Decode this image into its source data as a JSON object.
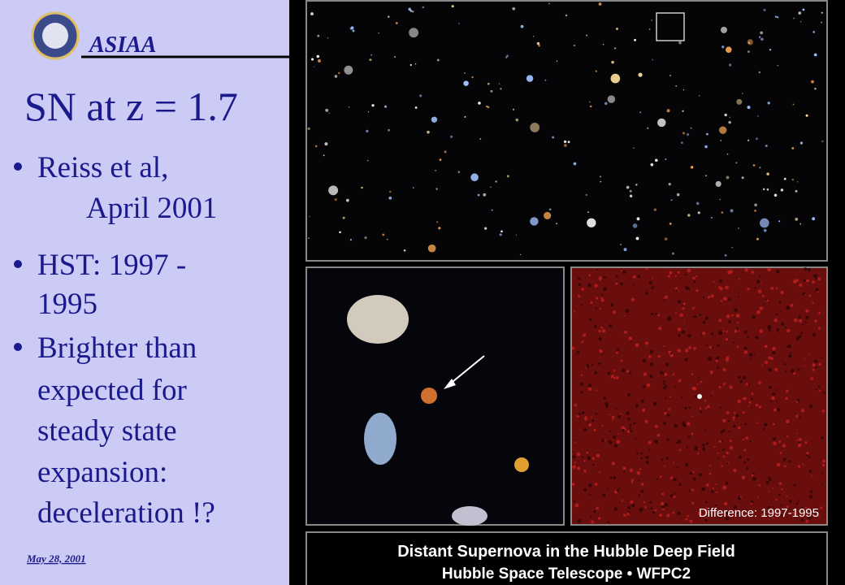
{
  "header": {
    "org": "ASIAA",
    "title": "SN at z = 1.7"
  },
  "bullets": [
    {
      "lines": [
        "Reiss et al,",
        "April 2001"
      ]
    },
    {
      "lines": [
        "HST: 1997 -",
        "1995"
      ]
    },
    {
      "lines": [
        "Brighter than",
        "expected for",
        "steady state",
        "expansion:",
        "deceleration !?"
      ]
    }
  ],
  "footer": {
    "date": "May 28, 2001"
  },
  "image": {
    "difference_label": "Difference: 1997-1995",
    "caption_title": "Distant Supernova in the Hubble Deep Field",
    "caption_subtitle": "Hubble Space Telescope • WFPC2"
  }
}
